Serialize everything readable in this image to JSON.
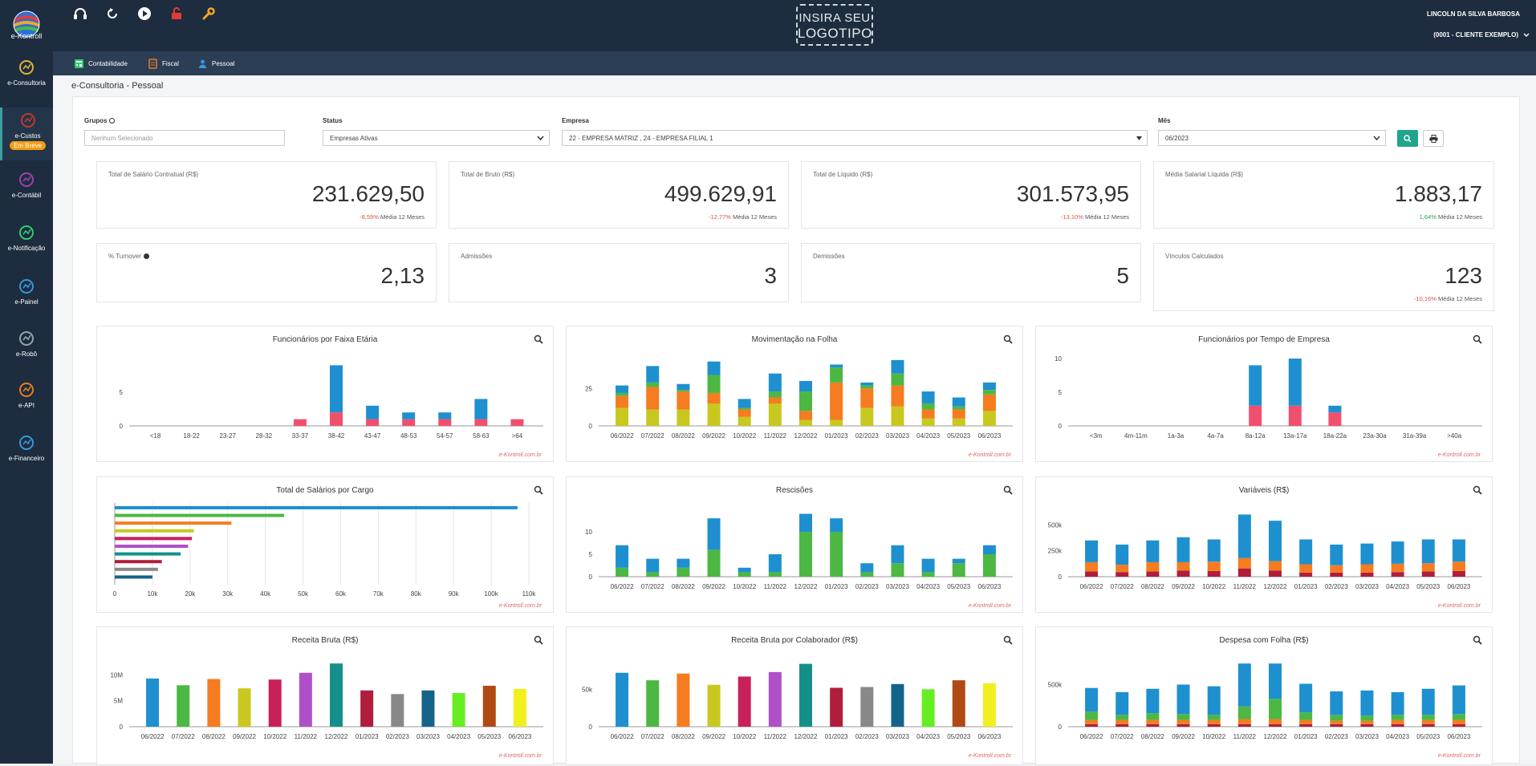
{
  "app": {
    "logo_text": "e-Kontroll",
    "brand_line1": "INSIRA SEU",
    "brand_line2": "LOGOTIPO",
    "user_name": "LINCOLN DA SILVA BARBOSA",
    "client": "(0001 - CLIENTE EXEMPLO)"
  },
  "top_icons": [
    "headset-icon",
    "refresh-icon",
    "play-icon",
    "lock-icon",
    "wrench-icon"
  ],
  "sidebar": [
    {
      "label": "e-Consultoria",
      "icon": "consulting-icon",
      "color": "#e0b040"
    },
    {
      "label": "e-Custos",
      "icon": "costs-icon",
      "color": "#c0392b",
      "badge": "Em Breve"
    },
    {
      "label": "e-Contábil",
      "icon": "accounting-icon",
      "color": "#a040b0"
    },
    {
      "label": "e-Notificação",
      "icon": "mail-icon",
      "color": "#2ecc71"
    },
    {
      "label": "e-Painel",
      "icon": "panel-icon",
      "color": "#3498db"
    },
    {
      "label": "e-Robô",
      "icon": "robot-icon",
      "color": "#95a5a6"
    },
    {
      "label": "e-API",
      "icon": "api-icon",
      "color": "#e67e22"
    },
    {
      "label": "e-Financeiro",
      "icon": "finance-icon",
      "color": "#3498db"
    }
  ],
  "subnav": [
    {
      "label": "Contabilidade",
      "icon": "calculator-icon",
      "color": "#2ecc71"
    },
    {
      "label": "Fiscal",
      "icon": "document-icon",
      "color": "#e67e22"
    },
    {
      "label": "Pessoal",
      "icon": "person-icon",
      "color": "#3498db"
    }
  ],
  "page_title": "e-Consultoria - Pessoal",
  "filters": {
    "grupos_label": "Grupos",
    "grupos_placeholder": "Nenhum Selecionado",
    "status_label": "Status",
    "status_value": "Empresas Ativas",
    "empresa_label": "Empresa",
    "empresa_value": "22 - EMPRESA MATRIZ , 24 - EMPRESA FILIAL 1",
    "mes_label": "Mês",
    "mes_value": "06/2023"
  },
  "kpis": [
    {
      "label": "Total de Salário Contratual (R$)",
      "value": "231.629,50",
      "delta": "-8,59%",
      "delta_sign": "neg",
      "suffix": "Média 12 Meses"
    },
    {
      "label": "Total de Bruto (R$)",
      "value": "499.629,91",
      "delta": "-12,77%",
      "delta_sign": "neg",
      "suffix": "Média 12 Meses"
    },
    {
      "label": "Total de Líquido (R$)",
      "value": "301.573,95",
      "delta": "-13,10%",
      "delta_sign": "neg",
      "suffix": "Média 12 Meses"
    },
    {
      "label": "Média Salarial Líquida (R$)",
      "value": "1.883,17",
      "delta": "1,64%",
      "delta_sign": "pos",
      "suffix": "Média 12 Meses"
    },
    {
      "label": "% Turnover",
      "value": "2,13",
      "delta": "",
      "delta_sign": "",
      "suffix": ""
    },
    {
      "label": "Admissões",
      "value": "3",
      "delta": "",
      "delta_sign": "",
      "suffix": ""
    },
    {
      "label": "Demissões",
      "value": "5",
      "delta": "",
      "delta_sign": "",
      "suffix": ""
    },
    {
      "label": "Vínculos Calculados",
      "value": "123",
      "delta": "-10,16%",
      "delta_sign": "neg",
      "suffix": "Média 12 Meses"
    }
  ],
  "credit": "e-Kontroll.com.br",
  "chart_data": [
    {
      "id": "faixa",
      "type": "bar",
      "stacked": true,
      "title": "Funcionários por Faixa Etária",
      "categories": [
        "<18",
        "18-22",
        "23-27",
        "28-32",
        "33-37",
        "38-42",
        "43-47",
        "48-53",
        "54-57",
        "58-63",
        ">64"
      ],
      "ylim": [
        0,
        10
      ],
      "yticks": [
        0,
        5
      ],
      "series": [
        {
          "color": "#f0506e",
          "values": [
            0,
            0,
            0,
            0,
            1,
            2,
            1,
            1,
            1,
            1,
            1
          ]
        },
        {
          "color": "#1e90d0",
          "values": [
            0,
            0,
            0,
            0,
            0,
            7,
            2,
            1,
            1,
            3,
            0
          ]
        }
      ]
    },
    {
      "id": "mov",
      "type": "bar",
      "stacked": true,
      "title": "Movimentação na Folha",
      "categories": [
        "06/2022",
        "07/2022",
        "08/2022",
        "09/2022",
        "10/2022",
        "11/2022",
        "12/2022",
        "01/2023",
        "02/2023",
        "03/2023",
        "04/2023",
        "05/2023",
        "06/2023"
      ],
      "ylim": [
        0,
        45
      ],
      "yticks": [
        0,
        25
      ],
      "series": [
        {
          "color": "#c8c820",
          "values": [
            12,
            11,
            11,
            15,
            6,
            15,
            4,
            4,
            12,
            13,
            5,
            5,
            10
          ]
        },
        {
          "color": "#f57c20",
          "values": [
            8,
            15,
            12,
            7,
            5,
            4,
            6,
            25,
            13,
            14,
            6,
            6,
            11
          ]
        },
        {
          "color": "#4cb843",
          "values": [
            2,
            3,
            1,
            12,
            1,
            4,
            13,
            10,
            2,
            8,
            4,
            2,
            3
          ]
        },
        {
          "color": "#1e90d0",
          "values": [
            5,
            11,
            4,
            9,
            6,
            12,
            7,
            2,
            2,
            9,
            8,
            6,
            5
          ]
        }
      ]
    },
    {
      "id": "tempo",
      "type": "bar",
      "stacked": true,
      "title": "Funcionários por Tempo de Empresa",
      "categories": [
        "<3m",
        "4m-11m",
        "1a-3a",
        "4a-7a",
        "8a-12a",
        "13a-17a",
        "18a-22a",
        "23a-30a",
        "31a-39a",
        ">40a"
      ],
      "ylim": [
        0,
        10
      ],
      "yticks": [
        0,
        5,
        10
      ],
      "series": [
        {
          "color": "#f0506e",
          "values": [
            0,
            0,
            0,
            0,
            3,
            3,
            2,
            0,
            0,
            0
          ]
        },
        {
          "color": "#1e90d0",
          "values": [
            0,
            0,
            0,
            0,
            6,
            7,
            1,
            0,
            0,
            0
          ]
        }
      ]
    },
    {
      "id": "cargo",
      "type": "hbar",
      "title": "Total de Salários por Cargo",
      "xlim": [
        0,
        110000
      ],
      "xticks": [
        "0",
        "10k",
        "20k",
        "30k",
        "40k",
        "50k",
        "60k",
        "70k",
        "80k",
        "90k",
        "100k",
        "110k"
      ],
      "values": [
        107000,
        45000,
        31000,
        21000,
        20500,
        19500,
        17500,
        12500,
        11500,
        10000
      ],
      "colors": [
        "#1e90d0",
        "#4cb843",
        "#f57c20",
        "#c8c820",
        "#c8205a",
        "#b050c8",
        "#14908a",
        "#b01e3c",
        "#888888",
        "#14648a"
      ]
    },
    {
      "id": "resc",
      "type": "bar",
      "stacked": true,
      "title": "Rescisões",
      "categories": [
        "06/2022",
        "07/2022",
        "08/2022",
        "09/2022",
        "10/2022",
        "11/2022",
        "12/2022",
        "01/2023",
        "02/2023",
        "03/2023",
        "04/2023",
        "05/2023",
        "06/2023"
      ],
      "ylim": [
        0,
        15
      ],
      "yticks": [
        0,
        5,
        10
      ],
      "series": [
        {
          "color": "#4cb843",
          "values": [
            2,
            1,
            2,
            6,
            1,
            1,
            10,
            10,
            1,
            3,
            1,
            3,
            5
          ]
        },
        {
          "color": "#1e90d0",
          "values": [
            5,
            3,
            2,
            7,
            1,
            4,
            4,
            3,
            2,
            4,
            3,
            1,
            2
          ]
        }
      ]
    },
    {
      "id": "var",
      "type": "bar",
      "stacked": true,
      "title": "Variáveis (R$)",
      "categories": [
        "06/2022",
        "07/2022",
        "08/2022",
        "09/2022",
        "10/2022",
        "11/2022",
        "12/2022",
        "01/2023",
        "02/2023",
        "03/2023",
        "04/2023",
        "05/2023",
        "06/2023"
      ],
      "ylim": [
        0,
        650000
      ],
      "yticks": [
        0,
        250000,
        500000
      ],
      "yticklabels": [
        "0",
        "250k",
        "500k"
      ],
      "series": [
        {
          "color": "#b01e3c",
          "values": [
            50000,
            45000,
            50000,
            60000,
            55000,
            80000,
            60000,
            40000,
            40000,
            40000,
            45000,
            50000,
            55000
          ]
        },
        {
          "color": "#f57c20",
          "values": [
            90000,
            70000,
            90000,
            80000,
            90000,
            100000,
            90000,
            80000,
            70000,
            80000,
            80000,
            80000,
            90000
          ]
        },
        {
          "color": "#1e90d0",
          "values": [
            210000,
            195000,
            210000,
            240000,
            215000,
            420000,
            390000,
            240000,
            200000,
            200000,
            215000,
            230000,
            215000
          ]
        }
      ]
    },
    {
      "id": "receita",
      "type": "bar",
      "title": "Receita Bruta (R$)",
      "categories": [
        "06/2022",
        "07/2022",
        "08/2022",
        "09/2022",
        "10/2022",
        "11/2022",
        "12/2022",
        "01/2023",
        "02/2023",
        "03/2023",
        "04/2023",
        "05/2023",
        "06/2023"
      ],
      "ylim": [
        0,
        13000000
      ],
      "yticks": [
        0,
        5000000,
        10000000
      ],
      "yticklabels": [
        "0",
        "5M",
        "10M"
      ],
      "values": [
        9300000,
        8000000,
        9200000,
        7400000,
        9100000,
        10400000,
        12200000,
        7000000,
        6300000,
        7000000,
        6500000,
        7900000,
        7300000
      ],
      "colors": [
        "#1e90d0",
        "#4cb843",
        "#f57c20",
        "#c8c820",
        "#c8205a",
        "#b050c8",
        "#14908a",
        "#b01e3c",
        "#888888",
        "#14648a",
        "#66ee22",
        "#b04a14",
        "#f0f020"
      ]
    },
    {
      "id": "colab",
      "type": "bar",
      "title": "Receita Bruta por Colaborador (R$)",
      "categories": [
        "06/2022",
        "07/2022",
        "08/2022",
        "09/2022",
        "10/2022",
        "11/2022",
        "12/2022",
        "01/2023",
        "02/2023",
        "03/2023",
        "04/2023",
        "05/2023",
        "06/2023"
      ],
      "ylim": [
        0,
        90000
      ],
      "yticks": [
        0,
        50000
      ],
      "yticklabels": [
        "0",
        "50k"
      ],
      "values": [
        72000,
        62000,
        71000,
        56000,
        67000,
        73000,
        84000,
        52000,
        53000,
        57000,
        50000,
        62000,
        58000
      ],
      "colors": [
        "#1e90d0",
        "#4cb843",
        "#f57c20",
        "#c8c820",
        "#c8205a",
        "#b050c8",
        "#14908a",
        "#b01e3c",
        "#888888",
        "#14648a",
        "#66ee22",
        "#b04a14",
        "#f0f020"
      ]
    },
    {
      "id": "despesa",
      "type": "bar",
      "stacked": true,
      "title": "Despesa com Folha (R$)",
      "categories": [
        "06/2022",
        "07/2022",
        "08/2022",
        "09/2022",
        "10/2022",
        "11/2022",
        "12/2022",
        "01/2023",
        "02/2023",
        "03/2023",
        "04/2023",
        "05/2023",
        "06/2023"
      ],
      "ylim": [
        0,
        800000
      ],
      "yticks": [
        0,
        500000
      ],
      "yticklabels": [
        "0",
        "500k"
      ],
      "series": [
        {
          "color": "#b01e3c",
          "values": [
            30000,
            30000,
            30000,
            30000,
            30000,
            30000,
            30000,
            30000,
            30000,
            30000,
            30000,
            30000,
            30000
          ]
        },
        {
          "color": "#f57c20",
          "values": [
            50000,
            50000,
            50000,
            50000,
            50000,
            60000,
            60000,
            50000,
            40000,
            40000,
            50000,
            50000,
            50000
          ]
        },
        {
          "color": "#4cb843",
          "values": [
            100000,
            60000,
            80000,
            70000,
            60000,
            150000,
            240000,
            90000,
            70000,
            60000,
            60000,
            60000,
            70000
          ]
        },
        {
          "color": "#1e90d0",
          "values": [
            280000,
            270000,
            290000,
            350000,
            340000,
            510000,
            420000,
            340000,
            280000,
            300000,
            270000,
            310000,
            340000
          ]
        }
      ]
    }
  ]
}
